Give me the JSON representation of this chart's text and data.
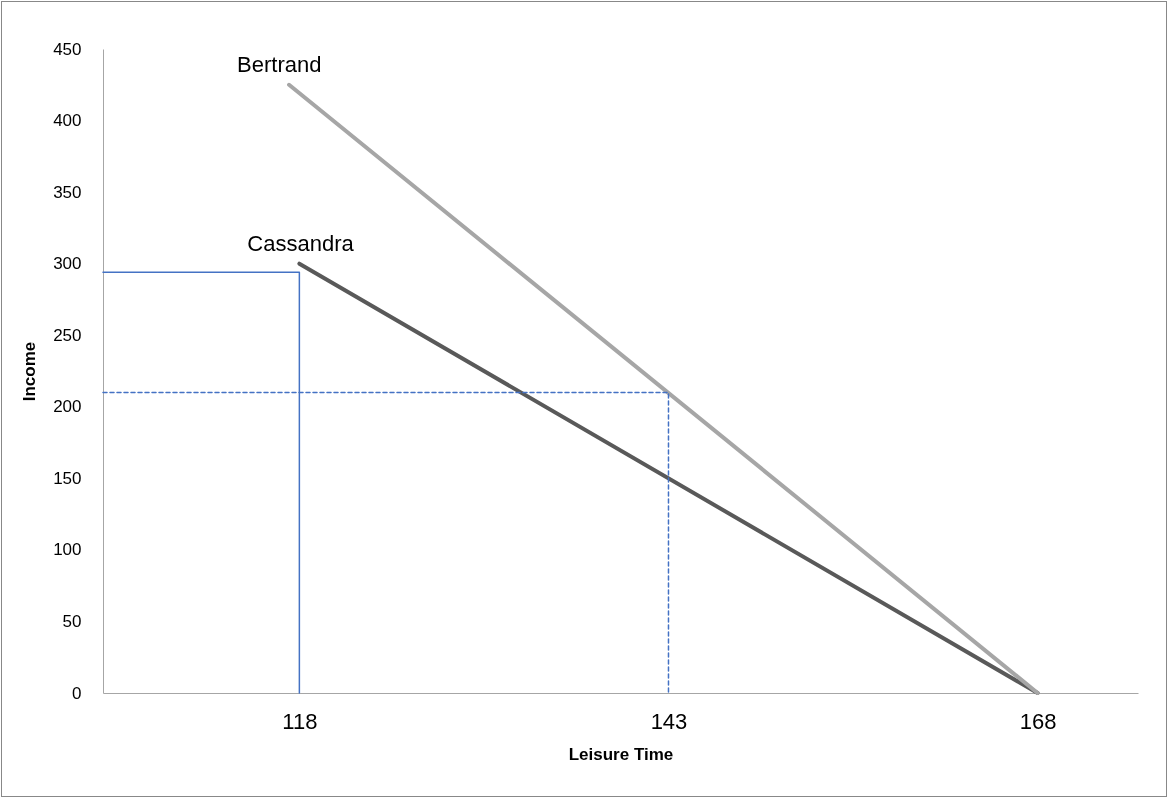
{
  "chart_data": {
    "type": "line",
    "xlabel": "Leisure Time",
    "ylabel": "Income",
    "xlim": [
      104.7,
      174.8
    ],
    "xticks": [
      118,
      143,
      168
    ],
    "ylim": [
      0,
      450
    ],
    "yticks": [
      0,
      50,
      100,
      150,
      200,
      250,
      300,
      350,
      400,
      450
    ],
    "grid": false,
    "marker": "none",
    "series": [
      {
        "name": "Cassandra",
        "color": "#595959",
        "x": [
          118,
          168
        ],
        "values": [
          300,
          0
        ]
      },
      {
        "name": "Bertrand",
        "color": "#a6a6a6",
        "x": [
          117.3,
          168
        ],
        "values": [
          425,
          0
        ]
      },
      {
        "color": "#4472c4",
        "x": [
          104.7,
          118,
          118
        ],
        "values": [
          294,
          294,
          0
        ],
        "line_style": "solid"
      },
      {
        "color": "#4472c4",
        "x": [
          104.7,
          143,
          143
        ],
        "values": [
          210,
          210,
          0
        ],
        "line_style": "dashed"
      }
    ]
  }
}
